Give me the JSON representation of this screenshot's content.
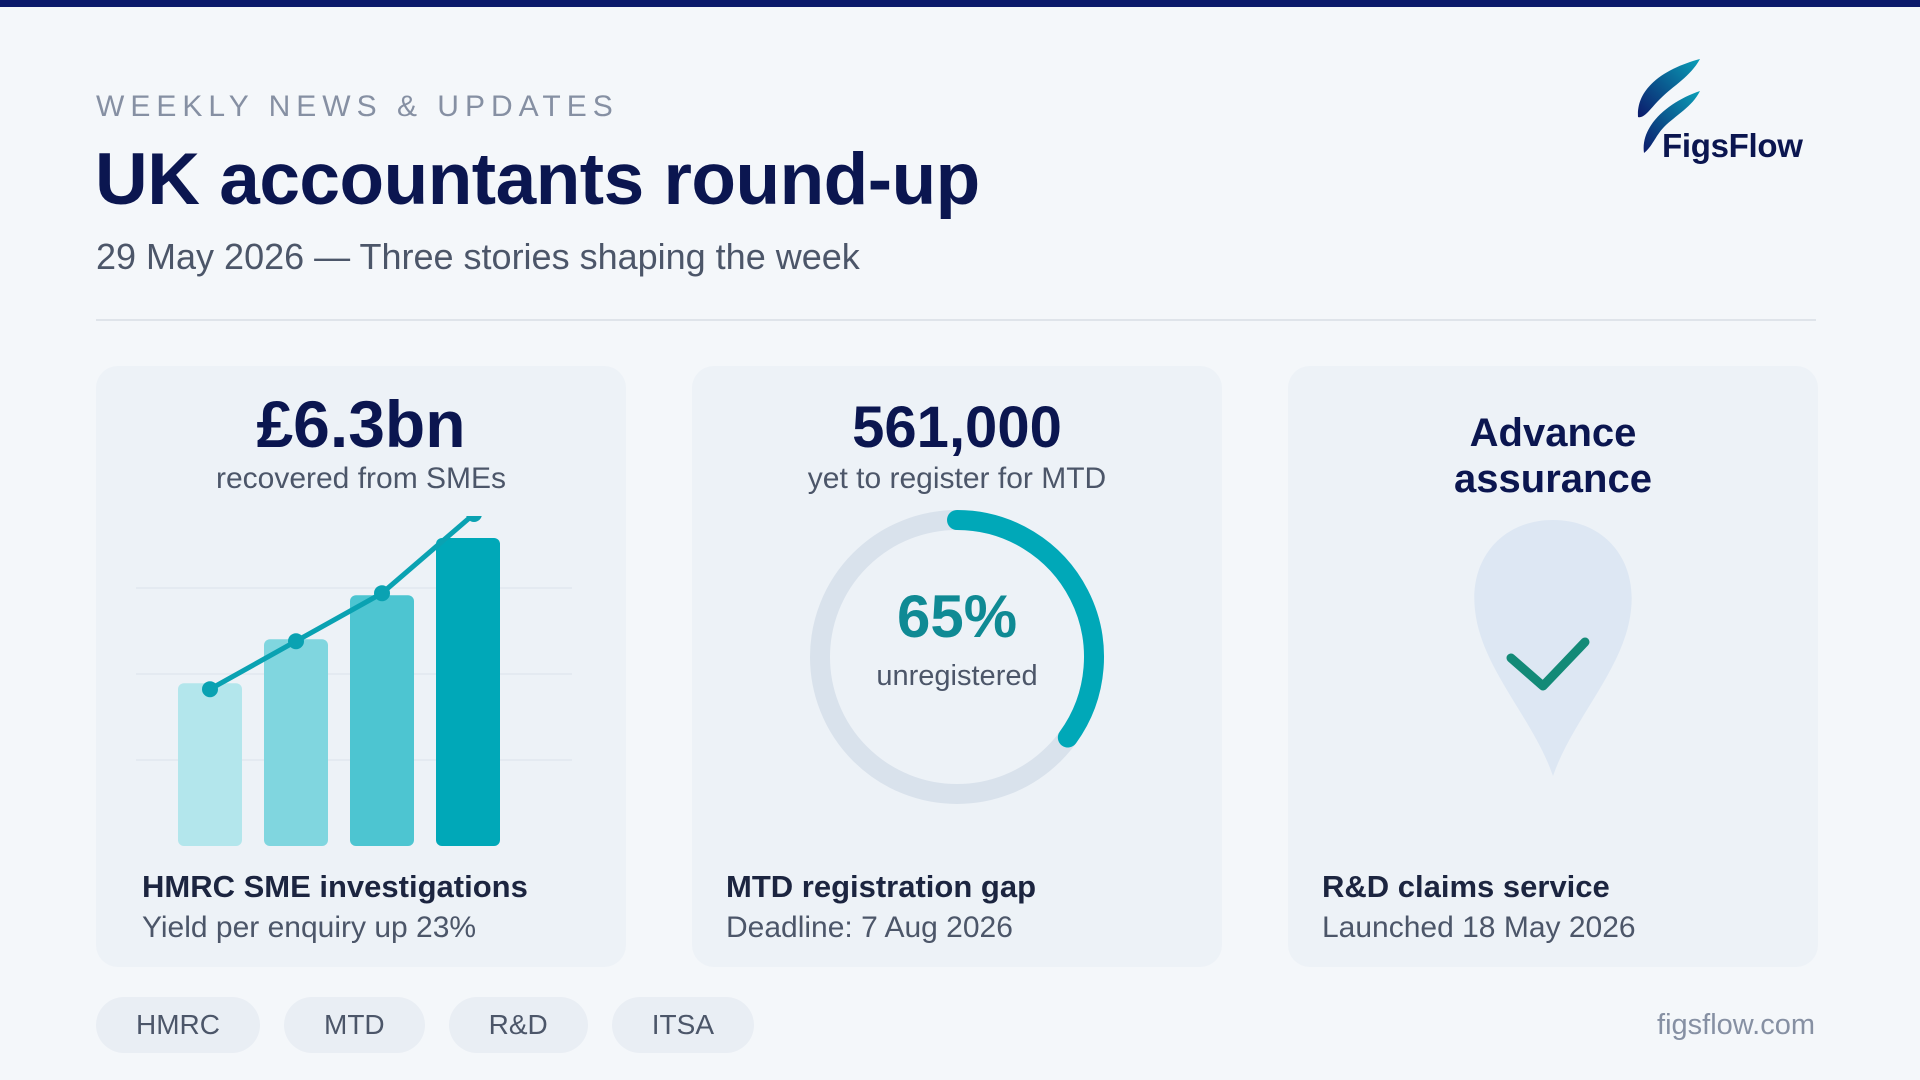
{
  "header": {
    "eyebrow": "WEEKLY NEWS & UPDATES",
    "title": "UK accountants round-up",
    "subtitle": "29 May 2026 — Three stories shaping the week"
  },
  "logo": {
    "text": "FigsFlow",
    "icon": "figsflow-leaf-icon"
  },
  "colors": {
    "navy": "#0b1650",
    "teal": "#00a8b8",
    "teal_dark": "#0f8a94",
    "check_green": "#138a77",
    "card_bg": "#edf2f7"
  },
  "cards": [
    {
      "stat": "£6.3bn",
      "stat_label": "recovered from SMEs",
      "headline": "HMRC SME investigations",
      "detail": "Yield per enquiry up 23%",
      "icon": "bar-chart-icon"
    },
    {
      "stat": "561,000",
      "stat_label": "yet to register for MTD",
      "headline": "MTD registration gap",
      "detail": "Deadline: 7 Aug 2026",
      "icon": "donut-progress-icon"
    },
    {
      "stat": "Advance\nassurance",
      "headline": "R&D claims service",
      "detail": "Launched 18 May 2026",
      "icon": "shield-check-icon"
    }
  ],
  "chart_data": [
    {
      "type": "bar",
      "categories": [
        "",
        "",
        "",
        ""
      ],
      "values": [
        37,
        47,
        57,
        70
      ],
      "trend_line": true,
      "ylim": [
        0,
        75
      ],
      "colors": [
        "#b3e6ec",
        "#80d6df",
        "#4dc5d1",
        "#00a8b8"
      ]
    },
    {
      "type": "pie",
      "display_value": "65%",
      "display_label": "unregistered",
      "progress_fraction": 0.35,
      "ring_color": "#00a8b8",
      "track_color": "#d9e2ec"
    }
  ],
  "tags": [
    "HMRC",
    "MTD",
    "R&D",
    "ITSA"
  ],
  "footer": {
    "site": "figsflow.com"
  }
}
